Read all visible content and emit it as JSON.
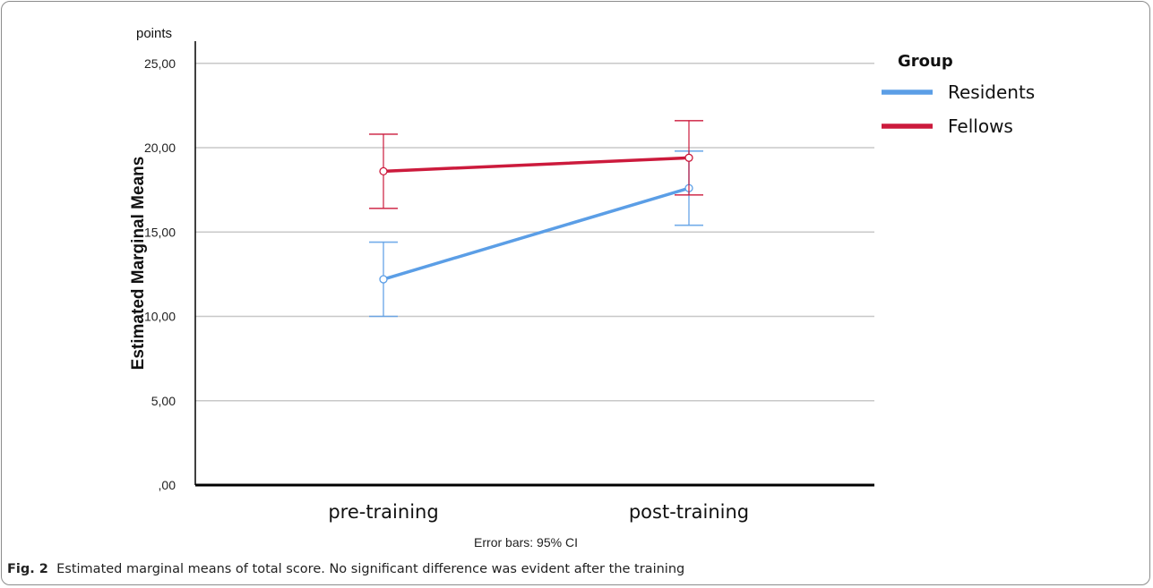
{
  "chart_data": {
    "type": "line",
    "categories": [
      "pre-training",
      "post-training"
    ],
    "series": [
      {
        "name": "Residents",
        "color": "#5b9ee6",
        "values": [
          12.2,
          17.6
        ],
        "ci_low": [
          10.0,
          15.4
        ],
        "ci_high": [
          14.4,
          19.8
        ]
      },
      {
        "name": "Fellows",
        "color": "#cc1a3c",
        "values": [
          18.6,
          19.4
        ],
        "ci_low": [
          16.4,
          17.2
        ],
        "ci_high": [
          20.8,
          21.6
        ]
      }
    ],
    "yticks": [
      "25,00",
      "20,00",
      "15,00",
      "10,00",
      "5,00",
      ",00"
    ],
    "ytick_values": [
      25,
      20,
      15,
      10,
      5,
      0
    ],
    "ylim": [
      0,
      26
    ],
    "unit_label": "points",
    "ylabel": "Estimated Marginal Means",
    "legend_title": "Group",
    "legend_position": "right",
    "note": "Error bars: 95% CI",
    "grid": true
  },
  "caption": {
    "label": "Fig. 2",
    "text": "Estimated marginal means of total score. No significant difference was evident after the training"
  }
}
